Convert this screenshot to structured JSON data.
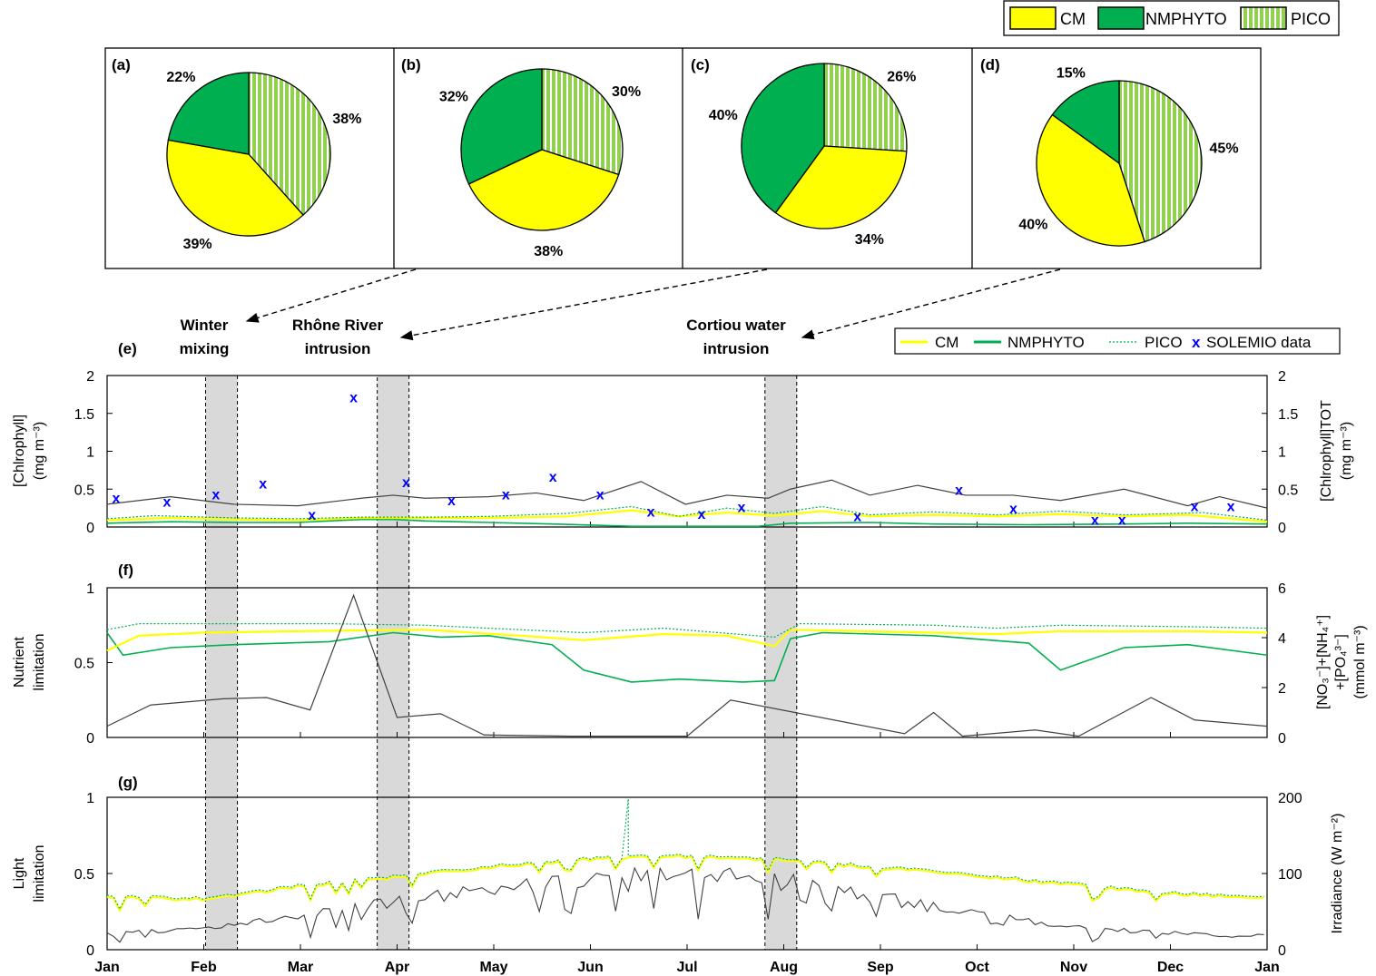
{
  "colors": {
    "cm": "#ffff00",
    "nmphyto": "#00b050",
    "pico": "#92d050",
    "data": "#0000ff",
    "total": "#404040",
    "shade": "#d9d9d9"
  },
  "top_legend": [
    "CM",
    "NMPHYTO",
    "PICO"
  ],
  "pies": [
    {
      "panel": "(a)",
      "values": {
        "PICO": 38,
        "CM": 39,
        "NMPHYTO": 22
      },
      "labels": {
        "PICO": "38%",
        "CM": "39%",
        "NMPHYTO": "22%"
      }
    },
    {
      "panel": "(b)",
      "values": {
        "PICO": 30,
        "CM": 38,
        "NMPHYTO": 32
      },
      "labels": {
        "PICO": "30%",
        "CM": "38%",
        "NMPHYTO": "32%"
      }
    },
    {
      "panel": "(c)",
      "values": {
        "PICO": 26,
        "CM": 34,
        "NMPHYTO": 40
      },
      "labels": {
        "PICO": "26%",
        "CM": "34%",
        "NMPHYTO": "40%"
      }
    },
    {
      "panel": "(d)",
      "values": {
        "PICO": 45,
        "CM": 40,
        "NMPHYTO": 15
      },
      "labels": {
        "PICO": "45%",
        "CM": "40%",
        "NMPHYTO": "15%"
      }
    }
  ],
  "events": [
    {
      "line1": "Winter",
      "line2": "mixing"
    },
    {
      "line1": "Rhône River",
      "line2": "intrusion"
    },
    {
      "line1": "Cortiou water",
      "line2": "intrusion"
    }
  ],
  "line_legend": [
    "CM",
    "NMPHYTO",
    "PICO",
    "SOLEMIO data"
  ],
  "line_legend_marker": "x",
  "months": [
    "Jan",
    "Feb",
    "Mar",
    "Apr",
    "May",
    "Jun",
    "Jul",
    "Aug",
    "Sep",
    "Oct",
    "Nov",
    "Dec",
    "Jan"
  ],
  "panel_labels": [
    "(e)",
    "(f)",
    "(g)"
  ],
  "axes": {
    "e_left": [
      "[Chlrophyll]",
      "(mg m⁻³)"
    ],
    "e_right": [
      "[Chlrophyll]TOT",
      "(mg m⁻³)"
    ],
    "f_left": [
      "Nutrient",
      "limitation"
    ],
    "f_right": [
      "[NO₃⁻]+[NH₄⁺]",
      "+[PO₄³⁻]",
      "(mmol m⁻³)"
    ],
    "g_left": [
      "Light",
      "limitation"
    ],
    "g_right": [
      "Irradiance (W m⁻²)"
    ]
  },
  "chart_data": [
    {
      "type": "line",
      "panel": "(e)",
      "x_unit": "day of year",
      "ylim": [
        0,
        2
      ],
      "y2lim": [
        0,
        2
      ],
      "yticks": [
        "0",
        "0.5",
        "1",
        "1.5",
        "2"
      ],
      "y2ticks": [
        "0",
        "0.5",
        "1",
        "1.5",
        "2"
      ],
      "series": [
        {
          "name": "CM",
          "points": [
            [
              0,
              0.09
            ],
            [
              20,
              0.12
            ],
            [
              40,
              0.1
            ],
            [
              60,
              0.09
            ],
            [
              80,
              0.12
            ],
            [
              100,
              0.12
            ],
            [
              120,
              0.12
            ],
            [
              145,
              0.14
            ],
            [
              165,
              0.22
            ],
            [
              180,
              0.14
            ],
            [
              195,
              0.19
            ],
            [
              210,
              0.15
            ],
            [
              225,
              0.21
            ],
            [
              240,
              0.14
            ],
            [
              260,
              0.16
            ],
            [
              280,
              0.14
            ],
            [
              300,
              0.17
            ],
            [
              320,
              0.14
            ],
            [
              340,
              0.16
            ],
            [
              365,
              0.07
            ]
          ]
        },
        {
          "name": "NMPHYTO",
          "points": [
            [
              0,
              0.05
            ],
            [
              20,
              0.07
            ],
            [
              40,
              0.06
            ],
            [
              60,
              0.06
            ],
            [
              80,
              0.1
            ],
            [
              90,
              0.1
            ],
            [
              100,
              0.08
            ],
            [
              120,
              0.06
            ],
            [
              140,
              0.04
            ],
            [
              165,
              0.01
            ],
            [
              190,
              0.01
            ],
            [
              205,
              0.01
            ],
            [
              215,
              0.05
            ],
            [
              240,
              0.06
            ],
            [
              260,
              0.04
            ],
            [
              290,
              0.03
            ],
            [
              320,
              0.04
            ],
            [
              340,
              0.05
            ],
            [
              365,
              0.04
            ]
          ]
        },
        {
          "name": "PICO",
          "points": [
            [
              0,
              0.11
            ],
            [
              15,
              0.15
            ],
            [
              40,
              0.12
            ],
            [
              60,
              0.11
            ],
            [
              80,
              0.13
            ],
            [
              100,
              0.13
            ],
            [
              120,
              0.14
            ],
            [
              145,
              0.18
            ],
            [
              165,
              0.27
            ],
            [
              180,
              0.14
            ],
            [
              195,
              0.25
            ],
            [
              210,
              0.18
            ],
            [
              225,
              0.27
            ],
            [
              240,
              0.16
            ],
            [
              260,
              0.2
            ],
            [
              280,
              0.16
            ],
            [
              300,
              0.21
            ],
            [
              320,
              0.16
            ],
            [
              345,
              0.19
            ],
            [
              365,
              0.09
            ]
          ]
        },
        {
          "name": "TOT",
          "points": [
            [
              0,
              0.3
            ],
            [
              20,
              0.4
            ],
            [
              40,
              0.3
            ],
            [
              60,
              0.28
            ],
            [
              80,
              0.38
            ],
            [
              90,
              0.42
            ],
            [
              100,
              0.38
            ],
            [
              120,
              0.4
            ],
            [
              135,
              0.45
            ],
            [
              150,
              0.35
            ],
            [
              168,
              0.6
            ],
            [
              182,
              0.3
            ],
            [
              195,
              0.42
            ],
            [
              208,
              0.38
            ],
            [
              215,
              0.5
            ],
            [
              228,
              0.62
            ],
            [
              240,
              0.42
            ],
            [
              255,
              0.55
            ],
            [
              270,
              0.42
            ],
            [
              285,
              0.42
            ],
            [
              300,
              0.35
            ],
            [
              320,
              0.5
            ],
            [
              340,
              0.28
            ],
            [
              350,
              0.4
            ],
            [
              365,
              0.25
            ]
          ]
        }
      ],
      "solemio": [
        [
          5,
          0.39
        ],
        [
          33,
          0.34
        ],
        [
          60,
          0.44
        ],
        [
          86,
          0.58
        ],
        [
          113,
          0.17
        ],
        [
          136,
          1.72
        ],
        [
          165,
          0.6
        ],
        [
          190,
          0.36
        ],
        [
          220,
          0.44
        ],
        [
          246,
          0.67
        ],
        [
          272,
          0.44
        ],
        [
          300,
          0.21
        ],
        [
          328,
          0.18
        ],
        [
          350,
          0.27
        ],
        [
          414,
          0.15
        ],
        [
          470,
          0.5
        ],
        [
          500,
          0.25
        ],
        [
          545,
          0.1
        ],
        [
          560,
          0.1
        ],
        [
          600,
          0.28
        ],
        [
          620,
          0.28
        ]
      ]
    },
    {
      "type": "line",
      "panel": "(f)",
      "x_unit": "day of year",
      "ylim": [
        0,
        1
      ],
      "y2lim": [
        0,
        6
      ],
      "yticks": [
        "0",
        "0.5",
        "1"
      ],
      "y2ticks": [
        "0",
        "2",
        "4",
        "6"
      ],
      "series": [
        {
          "name": "CM",
          "points": [
            [
              0,
              0.58
            ],
            [
              10,
              0.68
            ],
            [
              30,
              0.7
            ],
            [
              60,
              0.71
            ],
            [
              100,
              0.72
            ],
            [
              130,
              0.68
            ],
            [
              150,
              0.65
            ],
            [
              175,
              0.69
            ],
            [
              195,
              0.68
            ],
            [
              210,
              0.61
            ],
            [
              215,
              0.72
            ],
            [
              260,
              0.7
            ],
            [
              280,
              0.69
            ],
            [
              300,
              0.71
            ],
            [
              340,
              0.71
            ],
            [
              365,
              0.7
            ]
          ]
        },
        {
          "name": "NMPHYTO",
          "points": [
            [
              0,
              0.7
            ],
            [
              5,
              0.55
            ],
            [
              20,
              0.6
            ],
            [
              40,
              0.62
            ],
            [
              70,
              0.64
            ],
            [
              90,
              0.7
            ],
            [
              105,
              0.67
            ],
            [
              120,
              0.68
            ],
            [
              140,
              0.62
            ],
            [
              150,
              0.45
            ],
            [
              165,
              0.37
            ],
            [
              180,
              0.39
            ],
            [
              200,
              0.37
            ],
            [
              210,
              0.38
            ],
            [
              215,
              0.66
            ],
            [
              225,
              0.7
            ],
            [
              260,
              0.68
            ],
            [
              290,
              0.63
            ],
            [
              300,
              0.45
            ],
            [
              320,
              0.6
            ],
            [
              340,
              0.62
            ],
            [
              365,
              0.55
            ]
          ]
        },
        {
          "name": "PICO",
          "points": [
            [
              0,
              0.72
            ],
            [
              10,
              0.76
            ],
            [
              40,
              0.76
            ],
            [
              70,
              0.76
            ],
            [
              100,
              0.75
            ],
            [
              130,
              0.72
            ],
            [
              150,
              0.7
            ],
            [
              175,
              0.73
            ],
            [
              210,
              0.67
            ],
            [
              218,
              0.76
            ],
            [
              260,
              0.75
            ],
            [
              280,
              0.73
            ],
            [
              300,
              0.75
            ],
            [
              340,
              0.74
            ],
            [
              365,
              0.73
            ]
          ]
        },
        {
          "name": "Nutrients",
          "points": [
            [
              0,
              0.45
            ],
            [
              15,
              1.3
            ],
            [
              40,
              1.55
            ],
            [
              55,
              1.6
            ],
            [
              70,
              1.1
            ],
            [
              85,
              5.7
            ],
            [
              100,
              0.8
            ],
            [
              115,
              0.95
            ],
            [
              130,
              0.1
            ],
            [
              160,
              0.05
            ],
            [
              190,
              0.05
            ],
            [
              200,
              0.05
            ],
            [
              215,
              1.5
            ],
            [
              275,
              0.15
            ],
            [
              285,
              1.0
            ],
            [
              295,
              0.05
            ],
            [
              320,
              0.3
            ],
            [
              335,
              0.05
            ],
            [
              360,
              1.6
            ],
            [
              375,
              0.7
            ],
            [
              400,
              0.45
            ]
          ]
        }
      ]
    },
    {
      "type": "line",
      "panel": "(g)",
      "x_unit": "day of year",
      "ylim": [
        0,
        1
      ],
      "y2lim": [
        0,
        200
      ],
      "yticks": [
        "0",
        "0.5",
        "1"
      ],
      "y2ticks": [
        "0",
        "100",
        "200"
      ],
      "series": [
        {
          "name": "CM",
          "points": [
            [
              0,
              0.35
            ],
            [
              30,
              0.34
            ],
            [
              60,
              0.42
            ],
            [
              90,
              0.48
            ],
            [
              120,
              0.55
            ],
            [
              150,
              0.6
            ],
            [
              180,
              0.62
            ],
            [
              210,
              0.6
            ],
            [
              240,
              0.55
            ],
            [
              270,
              0.5
            ],
            [
              300,
              0.44
            ],
            [
              330,
              0.38
            ],
            [
              365,
              0.35
            ]
          ]
        },
        {
          "name": "NMPHYTO",
          "points": [
            [
              0,
              0.35
            ],
            [
              30,
              0.34
            ],
            [
              60,
              0.42
            ],
            [
              90,
              0.48
            ],
            [
              120,
              0.55
            ],
            [
              150,
              0.6
            ],
            [
              180,
              0.62
            ],
            [
              210,
              0.6
            ],
            [
              240,
              0.55
            ],
            [
              270,
              0.5
            ],
            [
              300,
              0.44
            ],
            [
              330,
              0.38
            ],
            [
              365,
              0.35
            ]
          ]
        },
        {
          "name": "PICO",
          "points": [
            [
              0,
              0.36
            ],
            [
              30,
              0.35
            ],
            [
              60,
              0.43
            ],
            [
              90,
              0.49
            ],
            [
              120,
              0.56
            ],
            [
              150,
              0.61
            ],
            [
              164,
              0.99
            ],
            [
              180,
              0.63
            ],
            [
              210,
              0.61
            ],
            [
              240,
              0.56
            ],
            [
              270,
              0.51
            ],
            [
              300,
              0.45
            ],
            [
              330,
              0.39
            ],
            [
              365,
              0.36
            ]
          ]
        },
        {
          "name": "Irradiance",
          "points": [
            [
              0,
              25
            ],
            [
              30,
              30
            ],
            [
              60,
              50
            ],
            [
              90,
              70
            ],
            [
              120,
              90
            ],
            [
              150,
              100
            ],
            [
              180,
              115
            ],
            [
              210,
              105
            ],
            [
              240,
              80
            ],
            [
              270,
              55
            ],
            [
              300,
              35
            ],
            [
              330,
              25
            ],
            [
              365,
              20
            ]
          ]
        }
      ]
    }
  ]
}
